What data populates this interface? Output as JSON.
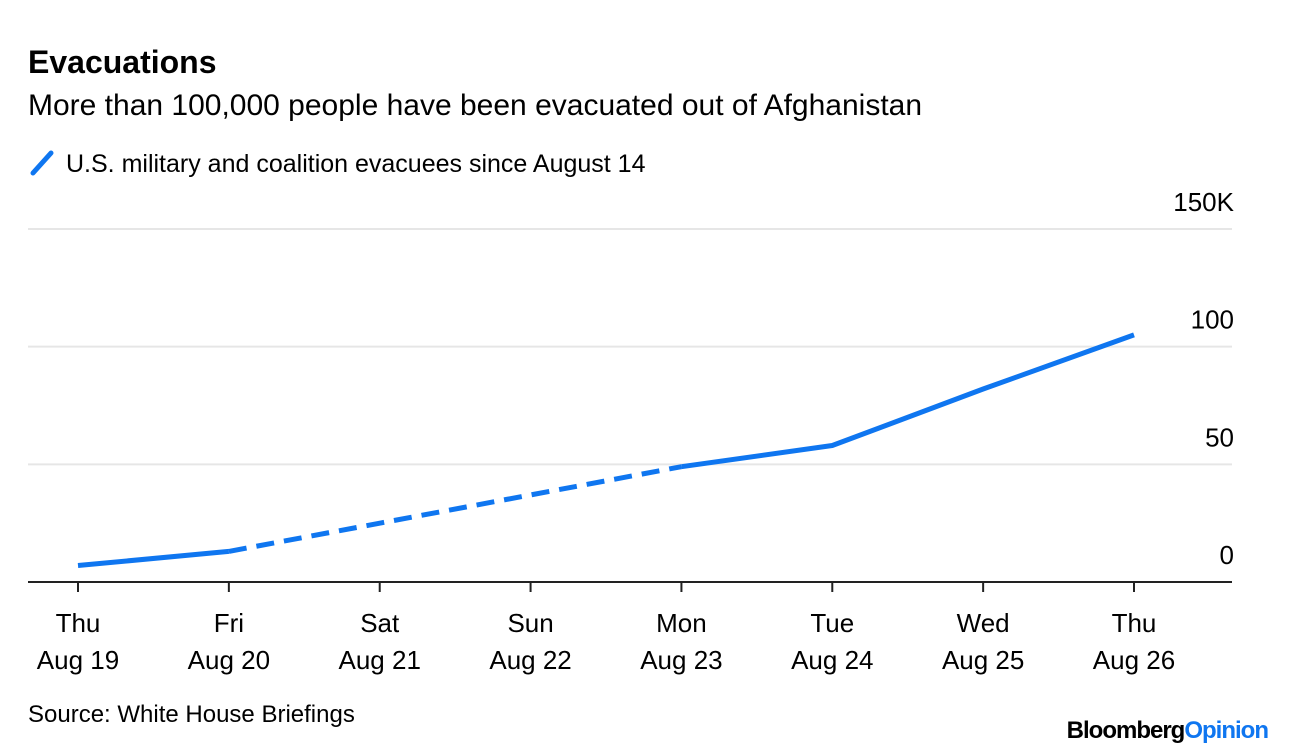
{
  "chart_data": {
    "type": "line",
    "title": "Evacuations",
    "subtitle": "More than 100,000 people have been evacuated out of Afghanistan",
    "categories": [
      [
        "Thu",
        "Aug 19"
      ],
      [
        "Fri",
        "Aug 20"
      ],
      [
        "Sat",
        "Aug 21"
      ],
      [
        "Sun",
        "Aug 22"
      ],
      [
        "Mon",
        "Aug 23"
      ],
      [
        "Tue",
        "Aug 24"
      ],
      [
        "Wed",
        "Aug 25"
      ],
      [
        "Thu",
        "Aug 26"
      ]
    ],
    "series": [
      {
        "name": "U.S. military and coalition evacuees since August 14",
        "color": "#0f76f0",
        "values": [
          7,
          13,
          25,
          37,
          49,
          58,
          82,
          105
        ],
        "segment_styles": [
          "solid",
          "dashed",
          "dashed",
          "dashed",
          "solid",
          "solid",
          "solid"
        ]
      }
    ],
    "ylim": [
      0,
      150
    ],
    "yticks": [
      0,
      50,
      100,
      {
        "value": 150,
        "label": "150K"
      }
    ],
    "grid": true,
    "source": "Source: White House Briefings",
    "brand": [
      "Bloomberg",
      "Opinion"
    ]
  }
}
